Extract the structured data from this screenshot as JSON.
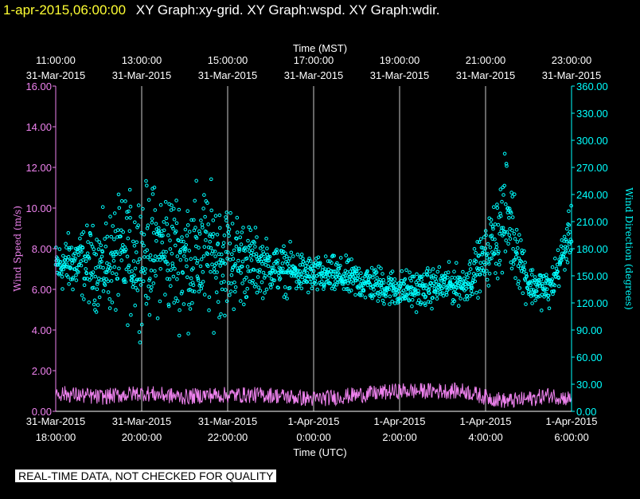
{
  "header": {
    "time_label": "1-apr-2015,06:00:00",
    "titles": "XY Graph:xy-grid.  XY Graph:wspd.  XY Graph:wdir."
  },
  "disclaimer": "REAL-TIME DATA, NOT CHECKED FOR QUALITY",
  "colors": {
    "wind_speed": "#ee82ee",
    "wind_direction": "#00ffff",
    "axis_text": "#ffffff",
    "header_time": "#ffff33",
    "background": "#000000",
    "grid": "#ffffff"
  },
  "chart_data": {
    "type": "scatter",
    "x_axis_top": {
      "label": "Time (MST)",
      "ticks": [
        {
          "x": 0,
          "line1": "11:00:00",
          "line2": "31-Mar-2015"
        },
        {
          "x": 2,
          "line1": "13:00:00",
          "line2": "31-Mar-2015"
        },
        {
          "x": 4,
          "line1": "15:00:00",
          "line2": "31-Mar-2015"
        },
        {
          "x": 6,
          "line1": "17:00:00",
          "line2": "31-Mar-2015"
        },
        {
          "x": 8,
          "line1": "19:00:00",
          "line2": "31-Mar-2015"
        },
        {
          "x": 10,
          "line1": "21:00:00",
          "line2": "31-Mar-2015"
        },
        {
          "x": 12,
          "line1": "23:00:00",
          "line2": "31-Mar-2015"
        }
      ]
    },
    "x_axis_bottom": {
      "label": "Time (UTC)",
      "ticks": [
        {
          "x": 0,
          "line1": "31-Mar-2015",
          "line2": "18:00:00"
        },
        {
          "x": 2,
          "line1": "31-Mar-2015",
          "line2": "20:00:00"
        },
        {
          "x": 4,
          "line1": "31-Mar-2015",
          "line2": "22:00:00"
        },
        {
          "x": 6,
          "line1": "1-Apr-2015",
          "line2": "0:00:00"
        },
        {
          "x": 8,
          "line1": "1-Apr-2015",
          "line2": "2:00:00"
        },
        {
          "x": 10,
          "line1": "1-Apr-2015",
          "line2": "4:00:00"
        },
        {
          "x": 12,
          "line1": "1-Apr-2015",
          "line2": "6:00:00"
        }
      ],
      "xlim": [
        0,
        12
      ]
    },
    "y_left": {
      "label": "Wind Speed (m/s)",
      "ylim": [
        0,
        16
      ],
      "ticks": [
        "0.00",
        "2.00",
        "4.00",
        "6.00",
        "8.00",
        "10.00",
        "12.00",
        "14.00",
        "16.00"
      ]
    },
    "y_right": {
      "label": "Wind Direction (degrees)",
      "ylim": [
        0,
        360
      ],
      "ticks": [
        "0.00",
        "30.00",
        "60.00",
        "90.00",
        "120.00",
        "150.00",
        "180.00",
        "210.00",
        "240.00",
        "270.00",
        "300.00",
        "330.00",
        "360.00"
      ]
    },
    "grid": true,
    "series": [
      {
        "name": "Wind Speed (m/s)",
        "style": "line",
        "x": [
          0,
          0.5,
          1,
          1.5,
          2,
          2.5,
          3,
          3.5,
          4,
          4.5,
          5,
          5.5,
          6,
          6.5,
          7,
          7.5,
          8,
          8.5,
          9,
          9.5,
          10,
          10.5,
          11,
          11.5,
          12
        ],
        "values": [
          0.9,
          0.8,
          0.7,
          0.8,
          0.9,
          0.8,
          0.7,
          0.8,
          0.8,
          0.8,
          0.8,
          0.7,
          0.6,
          0.7,
          0.8,
          0.9,
          1.0,
          1.0,
          1.0,
          1.0,
          0.7,
          0.5,
          0.6,
          0.8,
          0.6
        ]
      },
      {
        "name": "Wind Direction (degrees)",
        "style": "scatter",
        "x": [
          0,
          0.5,
          1,
          1.5,
          2,
          2.5,
          3,
          3.5,
          4,
          4.5,
          5,
          5.5,
          6,
          6.5,
          7,
          7.5,
          8,
          8.5,
          9,
          9.5,
          10,
          10.5,
          11,
          11.5,
          12
        ],
        "values": [
          160,
          165,
          160,
          170,
          175,
          180,
          170,
          175,
          170,
          165,
          160,
          155,
          150,
          150,
          145,
          140,
          135,
          135,
          140,
          140,
          170,
          220,
          140,
          135,
          200
        ],
        "spread": [
          25,
          35,
          45,
          60,
          70,
          65,
          70,
          70,
          60,
          40,
          25,
          25,
          20,
          20,
          20,
          20,
          20,
          20,
          20,
          20,
          30,
          60,
          20,
          20,
          25
        ]
      }
    ]
  }
}
